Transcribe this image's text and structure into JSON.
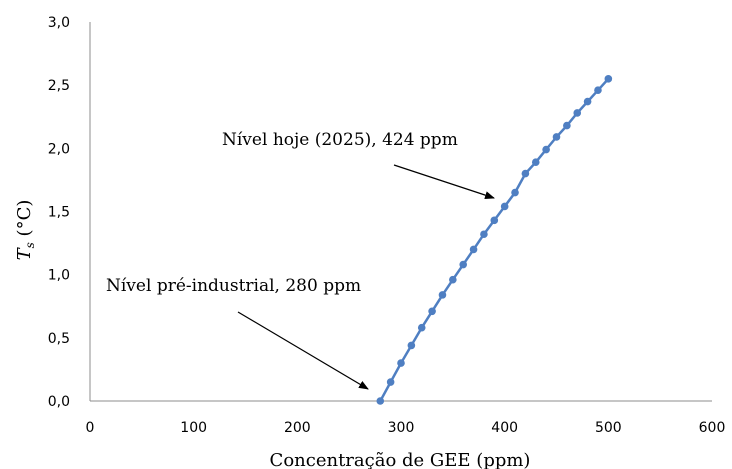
{
  "chart_data": {
    "type": "line",
    "title": "",
    "xlabel": "Concentração de GEE (ppm)",
    "ylabel": {
      "symbol": "T",
      "subscript": "s",
      "unit": " (°C)"
    },
    "xlim": [
      0,
      600
    ],
    "ylim": [
      0,
      3
    ],
    "x_ticks": [
      0,
      100,
      200,
      300,
      400,
      500,
      600
    ],
    "x_tick_labels": [
      "0",
      "100",
      "200",
      "300",
      "400",
      "500",
      "600"
    ],
    "y_ticks": [
      0,
      0.5,
      1,
      1.5,
      2,
      2.5,
      3
    ],
    "y_tick_labels": [
      "0,0",
      "0,5",
      "1,0",
      "1,5",
      "2,0",
      "2,5",
      "3,0"
    ],
    "grid": false,
    "legend": "none",
    "series": [
      {
        "color": "#4f7fc2",
        "marker": "circle",
        "x": [
          280,
          290,
          300,
          310,
          320,
          330,
          340,
          350,
          360,
          370,
          380,
          390,
          400,
          410,
          420,
          430,
          440,
          450,
          460,
          470,
          480,
          490,
          500
        ],
        "y": [
          0.0,
          0.15,
          0.3,
          0.44,
          0.58,
          0.71,
          0.84,
          0.96,
          1.08,
          1.2,
          1.32,
          1.43,
          1.54,
          1.65,
          1.8,
          1.89,
          1.99,
          2.09,
          2.18,
          2.28,
          2.37,
          2.46,
          2.55
        ]
      }
    ],
    "annotations": [
      {
        "text": "Nível hoje (2025), 424 ppm",
        "target": [
          395,
          1.57
        ]
      },
      {
        "text": "Nível pré-industrial, 280 ppm",
        "target": [
          265,
          0.08
        ]
      }
    ]
  }
}
